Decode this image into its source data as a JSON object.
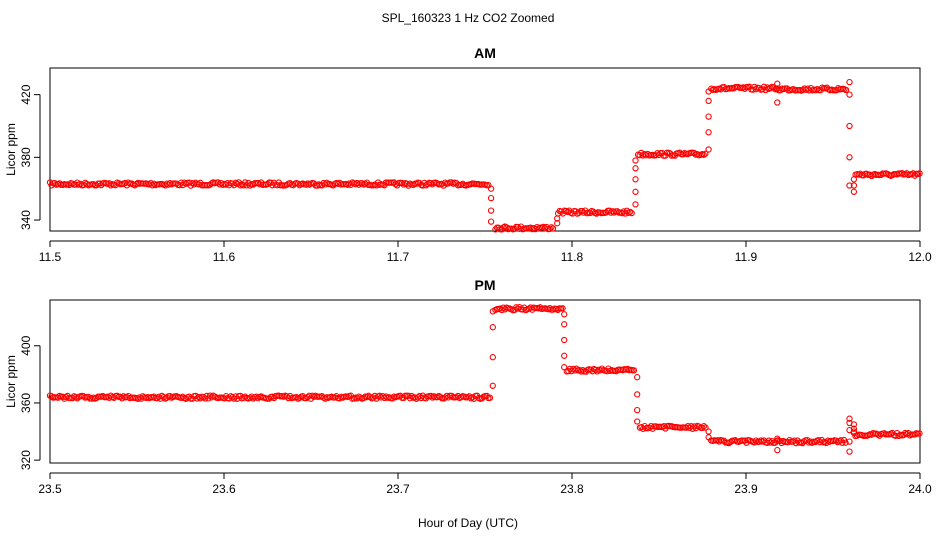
{
  "figure": {
    "title": "SPL_160323  1 Hz CO2 Zoomed",
    "xlabel": "Hour of Day (UTC)"
  },
  "chart_data": [
    {
      "type": "scatter",
      "title": "AM",
      "ylabel": "Licor ppm",
      "xlim": [
        11.5,
        12.0
      ],
      "ylim": [
        333,
        437
      ],
      "xticks": [
        "11.5",
        "11.6",
        "11.7",
        "11.8",
        "11.9",
        "12.0"
      ],
      "xtick_values": [
        11.5,
        11.6,
        11.7,
        11.8,
        11.9,
        12.0
      ],
      "yticks": [
        "340",
        "380",
        "420"
      ],
      "ytick_values": [
        340,
        380,
        420
      ],
      "marker_color": "#ff0000",
      "grid": false,
      "plateaus": [
        {
          "x": [
            11.5,
            11.752
          ],
          "y": 363
        },
        {
          "x": [
            11.756,
            11.79
          ],
          "y": 335
        },
        {
          "x": [
            11.792,
            11.835
          ],
          "y": 345
        },
        {
          "x": [
            11.838,
            11.877
          ],
          "y": 382
        },
        {
          "x": [
            11.88,
            11.918
          ],
          "y": 424
        },
        {
          "x": [
            11.918,
            11.958
          ],
          "y": 423.5
        },
        {
          "x": [
            11.963,
            12.0
          ],
          "y": 369
        }
      ],
      "transitions": [
        {
          "x": 11.7535,
          "y": [
            360,
            354,
            346,
            339
          ]
        },
        {
          "x": 11.7915,
          "y": [
            338,
            341
          ]
        },
        {
          "x": 11.8365,
          "y": [
            350,
            358,
            366,
            373,
            378
          ]
        },
        {
          "x": 11.8785,
          "y": [
            385,
            396,
            406,
            416,
            422
          ]
        },
        {
          "x": 11.918,
          "y": [
            427,
            415
          ]
        },
        {
          "x": 11.9595,
          "y": [
            428,
            420,
            400,
            380,
            362
          ]
        },
        {
          "x": 11.962,
          "y": [
            358,
            362,
            366
          ]
        }
      ]
    },
    {
      "type": "scatter",
      "title": "PM",
      "ylabel": "Licor ppm",
      "xlim": [
        23.5,
        24.0
      ],
      "ylim": [
        318,
        432
      ],
      "xticks": [
        "23.5",
        "23.6",
        "23.7",
        "23.8",
        "23.9",
        "24.0"
      ],
      "xtick_values": [
        23.5,
        23.6,
        23.7,
        23.8,
        23.9,
        24.0
      ],
      "yticks": [
        "320",
        "360",
        "400"
      ],
      "ytick_values": [
        320,
        360,
        400
      ],
      "marker_color": "#ff0000",
      "grid": false,
      "plateaus": [
        {
          "x": [
            23.5,
            23.753
          ],
          "y": 364
        },
        {
          "x": [
            23.756,
            23.795
          ],
          "y": 426
        },
        {
          "x": [
            23.797,
            23.836
          ],
          "y": 383
        },
        {
          "x": [
            23.839,
            23.877
          ],
          "y": 343
        },
        {
          "x": [
            23.88,
            23.958
          ],
          "y": 333
        },
        {
          "x": [
            23.962,
            24.0
          ],
          "y": 338
        }
      ],
      "transitions": [
        {
          "x": 23.7545,
          "y": [
            372,
            392,
            413,
            424
          ]
        },
        {
          "x": 23.7955,
          "y": [
            422,
            415,
            404,
            393,
            385
          ]
        },
        {
          "x": 23.8375,
          "y": [
            378,
            366,
            355,
            347
          ]
        },
        {
          "x": 23.8785,
          "y": [
            340,
            336
          ]
        },
        {
          "x": 23.918,
          "y": [
            327,
            335
          ]
        },
        {
          "x": 23.9595,
          "y": [
            326,
            333,
            341,
            346,
            349
          ]
        },
        {
          "x": 23.962,
          "y": [
            345,
            342,
            340
          ]
        }
      ]
    }
  ]
}
